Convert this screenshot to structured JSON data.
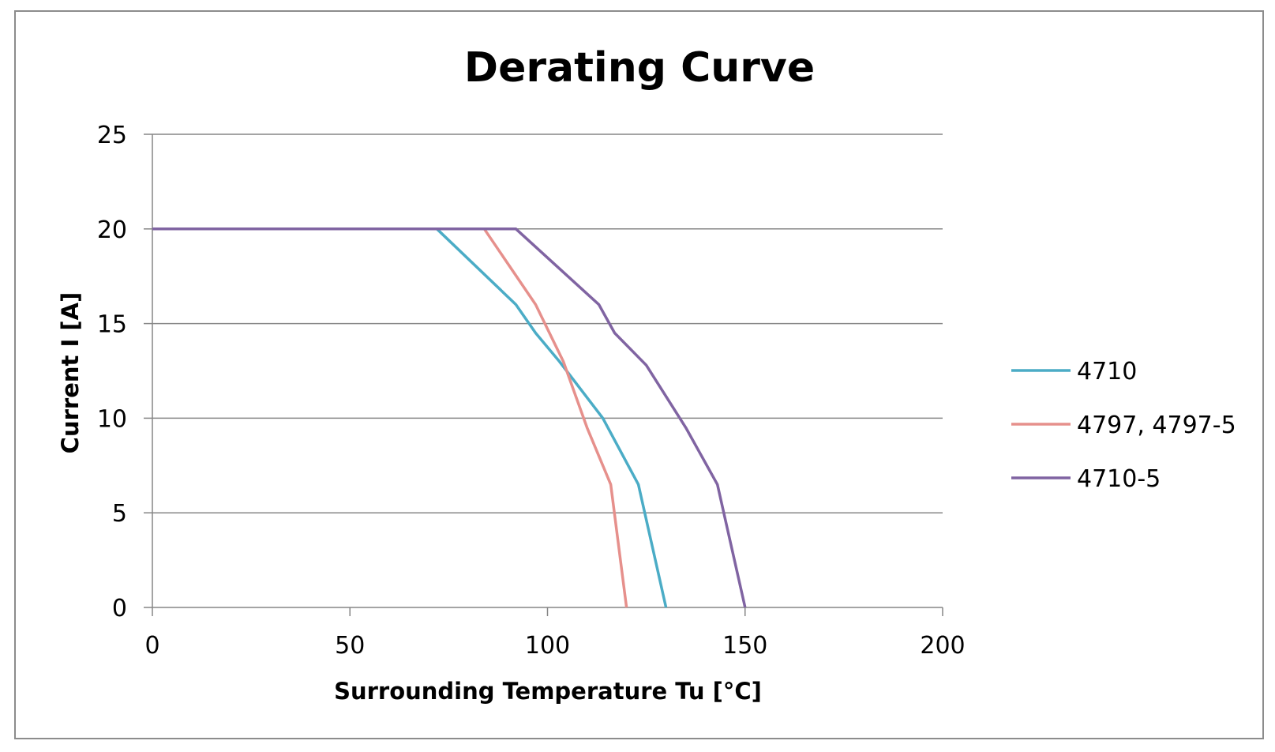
{
  "chart_data": {
    "type": "line",
    "title": "Derating Curve",
    "xlabel": "Surrounding Temperature Tu [°C]",
    "ylabel": "Current I [A]",
    "xlim": [
      0,
      200
    ],
    "ylim": [
      0,
      25
    ],
    "xticks": [
      0,
      50,
      100,
      150,
      200
    ],
    "yticks": [
      0,
      5,
      10,
      15,
      20,
      25
    ],
    "grid": "horizontal",
    "legend_position": "right",
    "series": [
      {
        "name": "4710",
        "color": "#4bacc6",
        "points": [
          [
            0,
            20
          ],
          [
            72,
            20
          ],
          [
            92,
            16
          ],
          [
            97,
            14.5
          ],
          [
            103,
            13
          ],
          [
            114,
            10
          ],
          [
            123,
            6.5
          ],
          [
            130,
            0
          ]
        ]
      },
      {
        "name": "4797, 4797-5",
        "color": "#e6908c",
        "points": [
          [
            0,
            20
          ],
          [
            84,
            20
          ],
          [
            97,
            16
          ],
          [
            104,
            13
          ],
          [
            110,
            9.5
          ],
          [
            116,
            6.5
          ],
          [
            120,
            0
          ]
        ]
      },
      {
        "name": "4710-5",
        "color": "#8064a2",
        "points": [
          [
            0,
            20
          ],
          [
            92,
            20
          ],
          [
            113,
            16
          ],
          [
            117,
            14.5
          ],
          [
            125,
            12.8
          ],
          [
            135,
            9.5
          ],
          [
            143,
            6.5
          ],
          [
            150,
            0
          ]
        ]
      }
    ]
  }
}
